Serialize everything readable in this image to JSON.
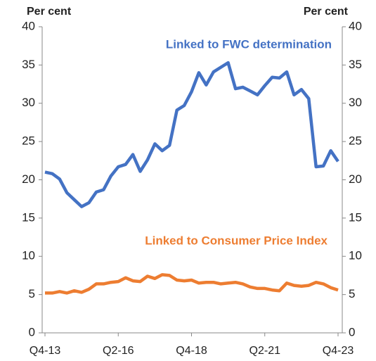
{
  "chart_data": {
    "type": "line",
    "ylabel": "Per cent",
    "y2label": "Per cent",
    "categories": [
      "Q4-13",
      null,
      null,
      null,
      null,
      null,
      null,
      null,
      null,
      null,
      "Q2-16",
      null,
      null,
      null,
      null,
      null,
      null,
      null,
      null,
      null,
      "Q4-18",
      null,
      null,
      null,
      null,
      null,
      null,
      null,
      null,
      null,
      "Q2-21",
      null,
      null,
      null,
      null,
      null,
      null,
      null,
      null,
      null,
      "Q4-23"
    ],
    "series": [
      {
        "name": "Linked to FWC determination",
        "color": "#4472c4",
        "values": [
          21.0,
          20.8,
          20.1,
          18.3,
          17.4,
          16.5,
          17.0,
          18.4,
          18.7,
          20.5,
          21.7,
          22.0,
          23.3,
          21.1,
          22.6,
          24.7,
          23.8,
          24.5,
          29.1,
          29.7,
          31.5,
          34.0,
          32.4,
          34.1,
          34.7,
          35.3,
          31.9,
          32.1,
          31.6,
          31.1,
          32.3,
          33.4,
          33.3,
          34.1,
          31.1,
          31.8,
          30.6,
          21.7,
          21.8,
          23.8,
          22.4
        ]
      },
      {
        "name": "Linked to Consumer Price Index",
        "color": "#ed7d31",
        "values": [
          5.2,
          5.2,
          5.4,
          5.2,
          5.5,
          5.3,
          5.7,
          6.4,
          6.4,
          6.6,
          6.7,
          7.2,
          6.8,
          6.7,
          7.4,
          7.1,
          7.6,
          7.5,
          6.9,
          6.8,
          6.9,
          6.5,
          6.6,
          6.6,
          6.4,
          6.5,
          6.6,
          6.4,
          6.0,
          5.8,
          5.8,
          5.6,
          5.5,
          6.5,
          6.2,
          6.1,
          6.2,
          6.6,
          6.4,
          5.9,
          5.6
        ]
      }
    ],
    "ylim": [
      0,
      40
    ],
    "yticks": [
      0,
      5,
      10,
      15,
      20,
      25,
      30,
      35,
      40
    ],
    "y2lim": [
      0,
      40
    ],
    "y2ticks": [
      0,
      5,
      10,
      15,
      20,
      25,
      30,
      35,
      40
    ],
    "grid": false
  }
}
